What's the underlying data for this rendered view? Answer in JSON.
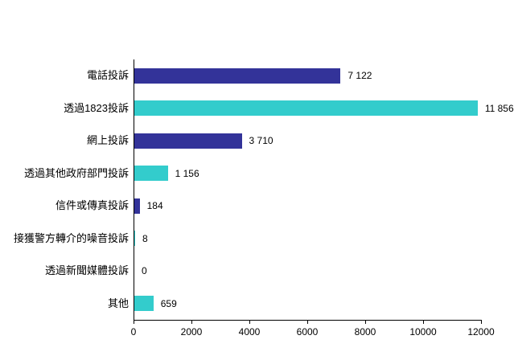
{
  "chart_data": {
    "type": "bar",
    "orientation": "horizontal",
    "title": "",
    "xlabel": "",
    "ylabel": "",
    "categories": [
      "電話投訴",
      "透過1823投訴",
      "網上投訴",
      "透過其他政府部門投訴",
      "信件或傳真投訴",
      "接獲警方轉介的噪音投訴",
      "透過新聞媒體投訴",
      "其他"
    ],
    "values": [
      7122,
      11856,
      3710,
      1156,
      184,
      8,
      0,
      659
    ],
    "value_labels": [
      "7 122",
      "11 856",
      "3 710",
      "1 156",
      "184",
      "8",
      "0",
      "659"
    ],
    "bar_colors": [
      "#333399",
      "#33CCCC",
      "#333399",
      "#33CCCC",
      "#333399",
      "#33CCCC",
      "#333399",
      "#33CCCC"
    ],
    "xlim": [
      0,
      12000
    ],
    "x_ticks": [
      "0",
      "2000",
      "4000",
      "6000",
      "8000",
      "10000",
      "12000"
    ],
    "grid": false,
    "legend": "none",
    "colors": {
      "dark_blue": "#333399",
      "teal": "#33CCCC",
      "axis": "#000000",
      "text": "#000000",
      "background": "#FFFFFF"
    }
  }
}
